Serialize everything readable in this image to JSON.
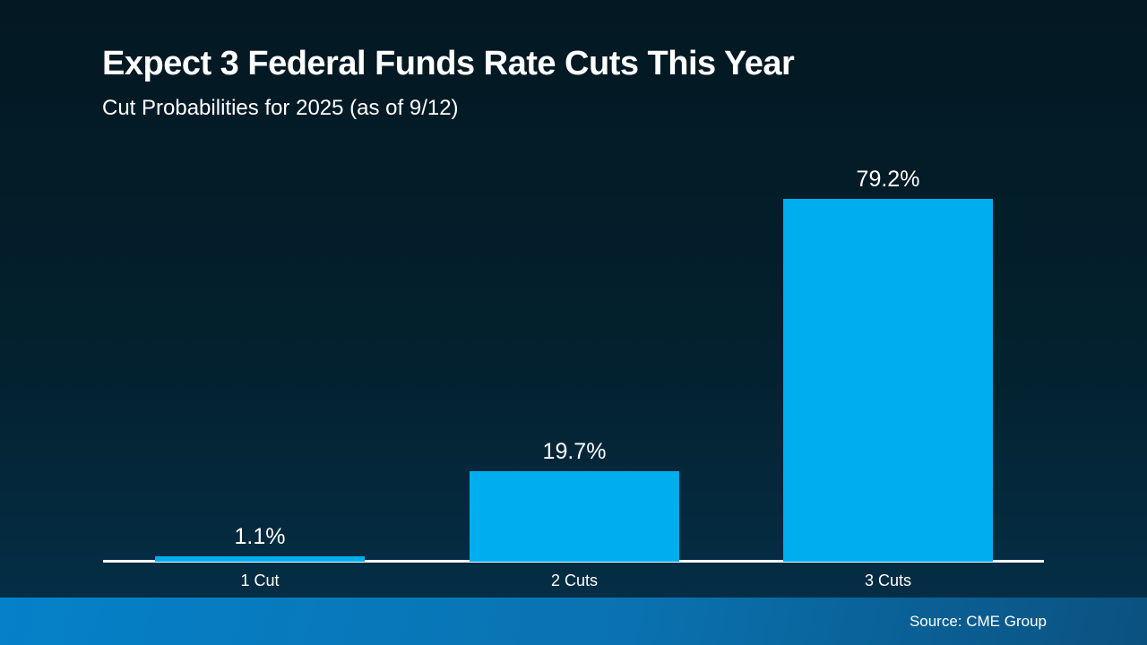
{
  "slide": {
    "title": "Expect 3 Federal Funds Rate Cuts This Year",
    "subtitle": "Cut Probabilities for 2025 (as of 9/12)",
    "source": "Source: CME Group"
  },
  "colors": {
    "background_top": "#031822",
    "background_mid": "#03212e",
    "background_bottom": "#05304a",
    "bar": "#00aeef",
    "axis": "#ffffff",
    "text": "#ffffff",
    "footer_left": "#0581c9",
    "footer_mid": "#0a72b0",
    "footer_right": "#0b517f"
  },
  "chart_data": {
    "type": "bar",
    "title": "Expect 3 Federal Funds Rate Cuts This Year",
    "subtitle": "Cut Probabilities for 2025 (as of 9/12)",
    "categories": [
      "1 Cut",
      "2 Cuts",
      "3 Cuts"
    ],
    "values": [
      1.1,
      19.7,
      79.2
    ],
    "value_labels": [
      "1.1%",
      "19.7%",
      "79.2%"
    ],
    "xlabel": "",
    "ylabel": "",
    "ylim": [
      0,
      100
    ],
    "grid": false,
    "legend": false,
    "source": "Source: CME Group"
  }
}
